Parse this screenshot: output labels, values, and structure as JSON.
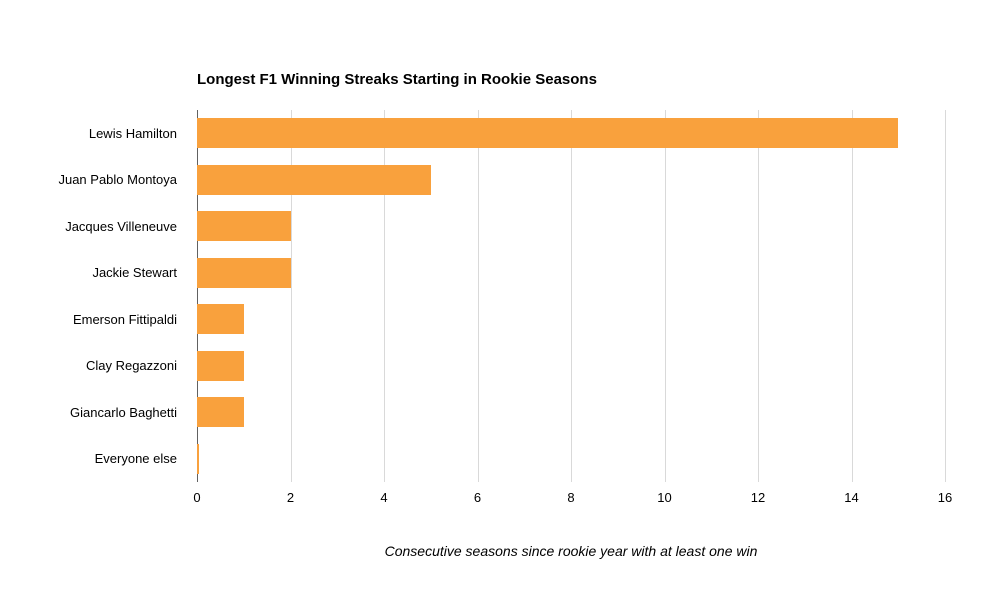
{
  "chart_data": {
    "type": "bar",
    "orientation": "horizontal",
    "title": "Longest F1 Winning Streaks Starting in Rookie Seasons",
    "categories": [
      "Lewis Hamilton",
      "Juan Pablo Montoya",
      "Jacques Villeneuve",
      "Jackie Stewart",
      "Emerson Fittipaldi",
      "Clay Regazzoni",
      "Giancarlo Baghetti",
      "Everyone else"
    ],
    "values": [
      15,
      5,
      2,
      2,
      1,
      1,
      1,
      0
    ],
    "xlabel": "Consecutive seasons since rookie year with at least one win",
    "ylabel": "",
    "xlim": [
      0,
      16
    ],
    "xticks": [
      0,
      2,
      4,
      6,
      8,
      10,
      12,
      14,
      16
    ],
    "grid": true,
    "legend": "none",
    "bar_color": "#F9A13D"
  }
}
